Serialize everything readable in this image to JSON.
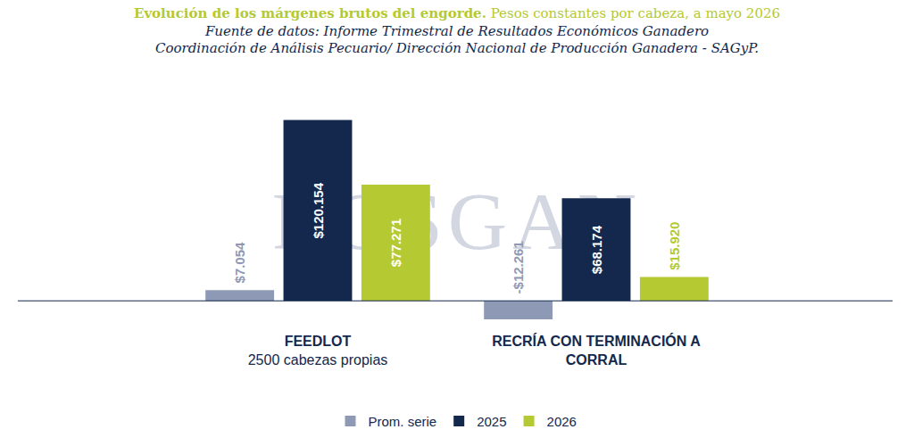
{
  "chart_data": {
    "type": "bar",
    "title": "Evolución de los márgenes brutos del engorde.",
    "subtitle": "Pesos constantes por cabeza, a mayo 2026",
    "source": [
      "Fuente de datos: Informe Trimestral de Resultados Económicos Ganadero",
      "Coordinación de Análisis Pecuario/ Dirección Nacional de Producción Ganadera - SAGyP."
    ],
    "watermark": "ROSGAN",
    "categories": [
      "FEEDLOT",
      "RECRÍA CON TERMINACIÓN A CORRAL"
    ],
    "annotations": [
      {
        "text": "2500 cabezas propias",
        "x": 0
      }
    ],
    "series": [
      {
        "name": "Prom. serie",
        "color": "#8e9ab5",
        "values": [
          7054,
          -12261
        ],
        "value_labels": [
          "$7.054",
          "-$12.261"
        ]
      },
      {
        "name": "2025",
        "color": "#13284c",
        "values": [
          120154,
          68174
        ],
        "value_labels": [
          "$120.154",
          "$68.174"
        ]
      },
      {
        "name": "2026",
        "color": "#b5c932",
        "values": [
          77271,
          15920
        ],
        "value_labels": [
          "$77.271",
          "$15.920"
        ]
      }
    ],
    "ylim": [
      -20000,
      130000
    ],
    "yticks": [
      0
    ],
    "grid": false,
    "legend": "bottom",
    "data_labels": true,
    "tick_labels": "x"
  }
}
